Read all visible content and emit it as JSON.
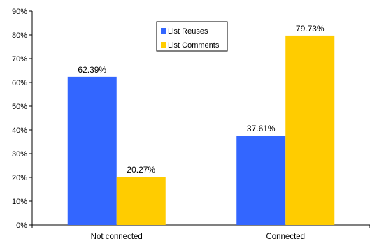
{
  "chart_data": {
    "type": "bar",
    "categories": [
      "Not connected",
      "Connected"
    ],
    "series": [
      {
        "name": "List Reuses",
        "values": [
          62.39,
          37.61
        ],
        "labels": [
          "62.39%",
          "37.61%"
        ],
        "color": "#3366ff"
      },
      {
        "name": "List Comments",
        "values": [
          20.27,
          79.73
        ],
        "labels": [
          "20.27%",
          "79.73%"
        ],
        "color": "#ffcc00"
      }
    ],
    "ylim": [
      0,
      90
    ],
    "yticks": [
      "0%",
      "10%",
      "20%",
      "30%",
      "40%",
      "50%",
      "60%",
      "70%",
      "80%",
      "90%"
    ],
    "title": "",
    "xlabel": "",
    "ylabel": "",
    "grid": false,
    "legend_position": "top-center"
  }
}
